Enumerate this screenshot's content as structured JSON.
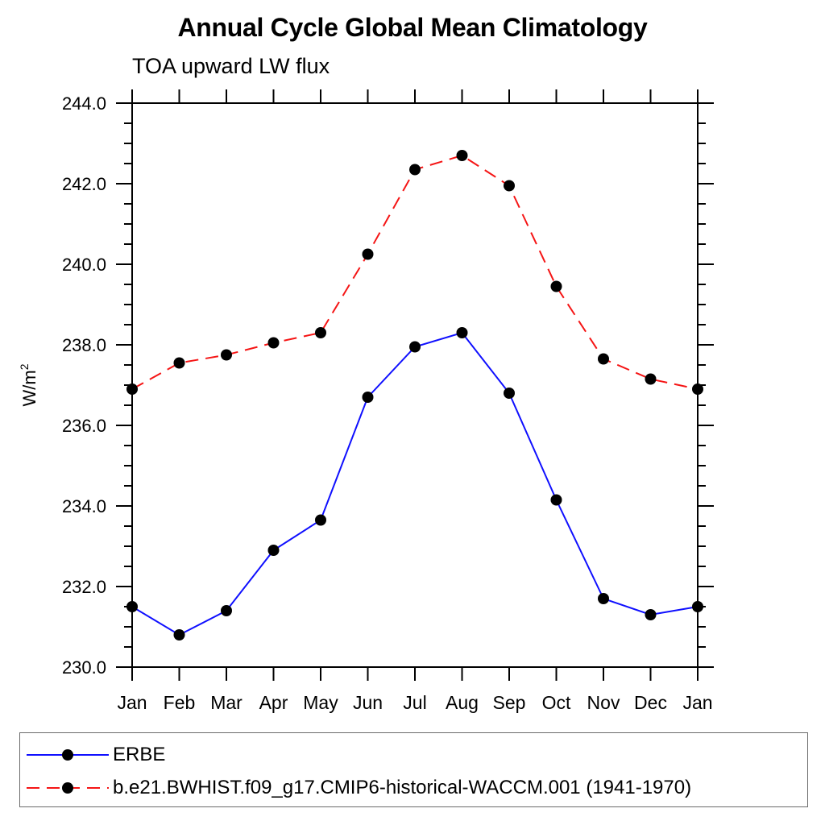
{
  "header": {
    "title": "Annual Cycle Global Mean Climatology",
    "subtitle": "TOA upward LW flux"
  },
  "chart_data": {
    "type": "line",
    "title": "Annual Cycle Global Mean Climatology",
    "subtitle": "TOA upward LW flux",
    "ylabel_base": "W/m",
    "ylabel_exponent": "2",
    "x_tick_labels": [
      "Jan",
      "Feb",
      "Mar",
      "Apr",
      "May",
      "Jun",
      "Jul",
      "Aug",
      "Sep",
      "Oct",
      "Nov",
      "Dec",
      "Jan"
    ],
    "y_tick_labels": [
      "230.0",
      "232.0",
      "234.0",
      "236.0",
      "238.0",
      "240.0",
      "242.0",
      "244.0"
    ],
    "ylim": [
      230.0,
      244.0
    ],
    "y_major_step": 2.0,
    "y_minor_step": 0.5,
    "grid": false,
    "legend_position": "bottom",
    "axis_color": "#000000",
    "marker_color": "#000000",
    "series": [
      {
        "name": "ERBE",
        "color": "#0f0fff",
        "line_style": "solid",
        "marker": "circle",
        "values": [
          231.5,
          230.8,
          231.4,
          232.9,
          233.65,
          236.7,
          237.95,
          238.3,
          236.8,
          234.15,
          231.7,
          231.3,
          231.5
        ]
      },
      {
        "name": "b.e21.BWHIST.f09_g17.CMIP6-historical-WACCM.001 (1941-1970)",
        "color": "#f51515",
        "line_style": "dashed",
        "marker": "circle",
        "values": [
          236.9,
          237.55,
          237.75,
          238.05,
          238.3,
          240.25,
          242.35,
          242.7,
          241.95,
          239.45,
          237.65,
          237.15,
          236.9
        ]
      }
    ]
  }
}
